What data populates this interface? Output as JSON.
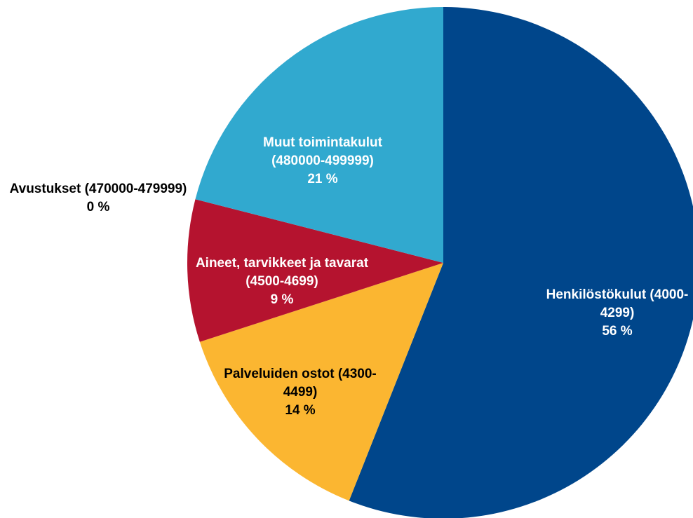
{
  "chart_data": {
    "type": "pie",
    "categories": [
      "Henkilöstökulut (4000-4299)",
      "Palveluiden ostot (4300-4499)",
      "Aineet, tarvikkeet ja tavarat (4500-4699)",
      "Avustukset (470000-479999)",
      "Muut toimintakulut (480000-499999)"
    ],
    "values": [
      56,
      14,
      9,
      0,
      21
    ],
    "value_labels": [
      "56 %",
      "14 %",
      "9 %",
      "0 %",
      "21 %"
    ],
    "colors": [
      "#00468b",
      "#fbb631",
      "#b5132f",
      "#7f7f7f",
      "#31a9cf"
    ]
  }
}
